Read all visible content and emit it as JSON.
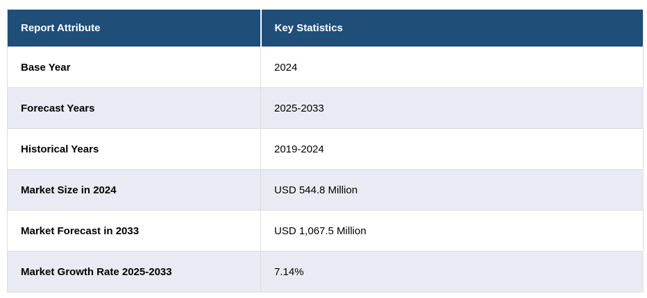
{
  "colors": {
    "header_bg": "#1F4E79",
    "header_text": "#FFFFFF",
    "row_alt_bg": "#E9EAF3",
    "border": "#DDDDDD"
  },
  "table": {
    "columns": [
      {
        "label": "Report Attribute"
      },
      {
        "label": "Key Statistics"
      }
    ],
    "rows": [
      {
        "attribute": "Base Year",
        "value": "2024"
      },
      {
        "attribute": "Forecast Years",
        "value": "2025-2033"
      },
      {
        "attribute": "Historical Years",
        "value": "2019-2024"
      },
      {
        "attribute": "Market Size in 2024",
        "value": "USD 544.8 Million"
      },
      {
        "attribute": "Market Forecast in 2033",
        "value": "USD 1,067.5 Million"
      },
      {
        "attribute": "Market Growth Rate 2025-2033",
        "value": "7.14%"
      }
    ]
  }
}
